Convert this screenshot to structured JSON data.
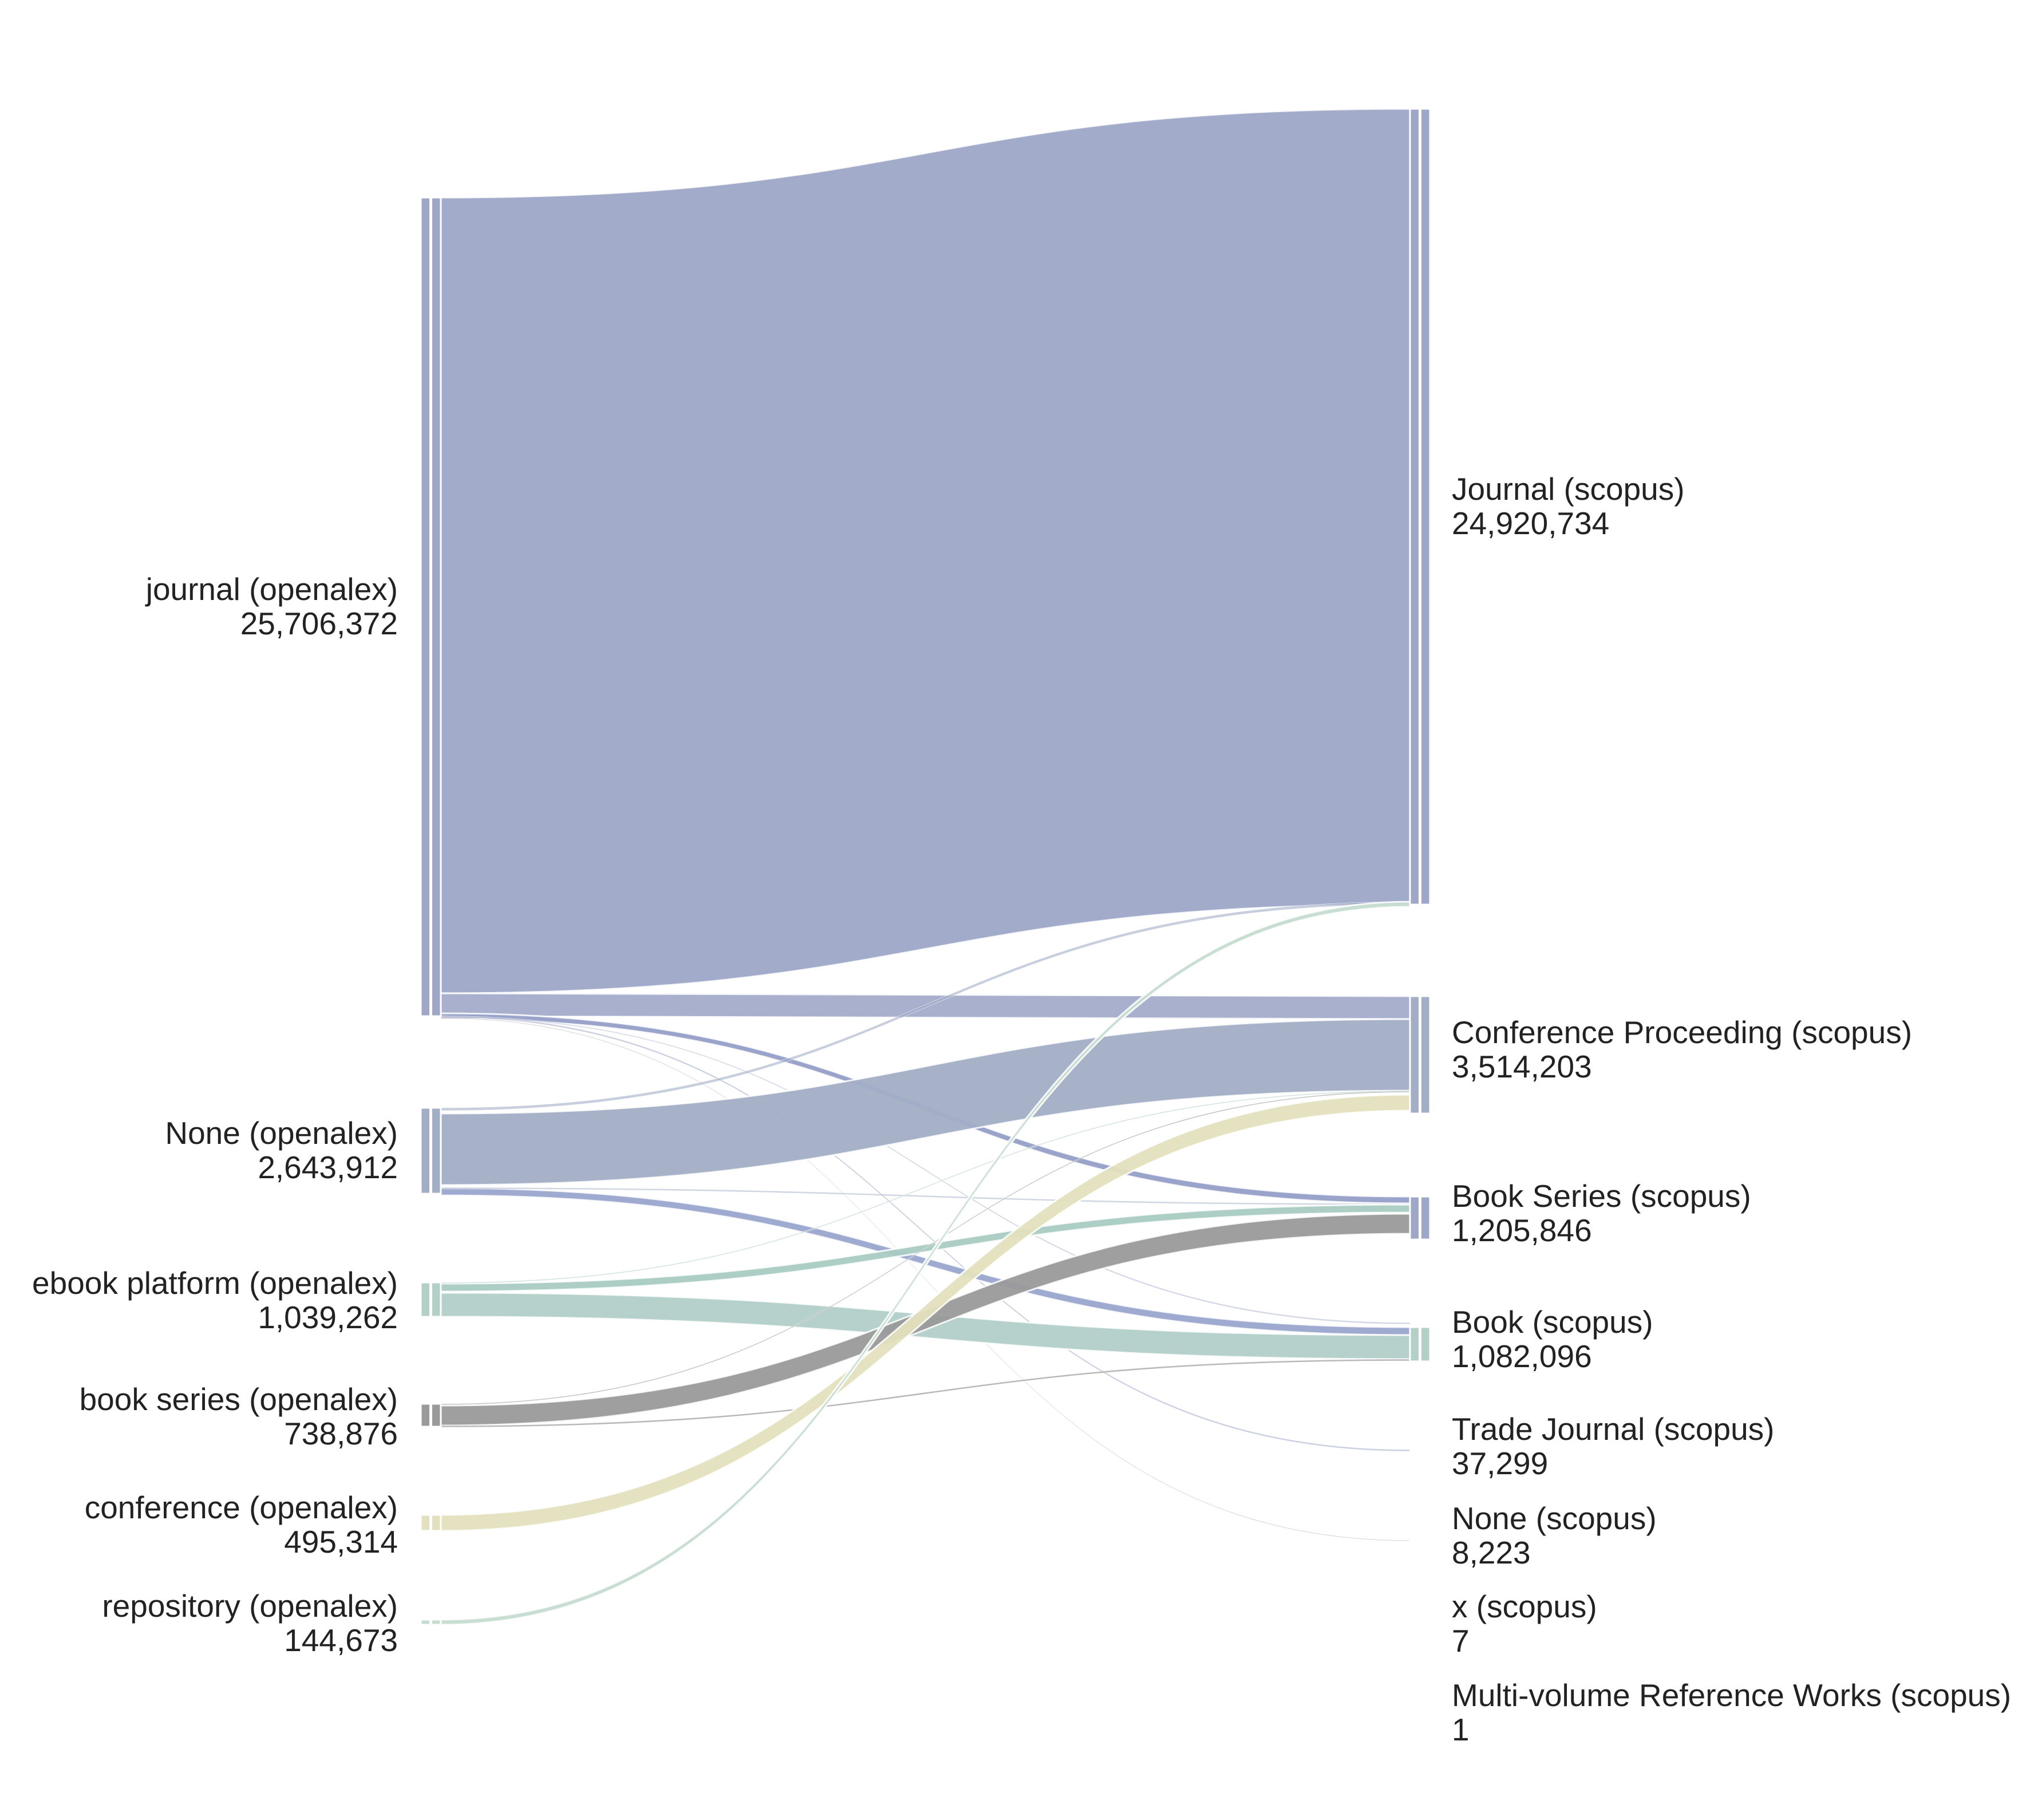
{
  "chart_data": {
    "type": "sankey",
    "left_nodes": [
      {
        "id": "journal",
        "label": "journal (openalex)",
        "value": "25,706,372",
        "color": "#9ea7c8"
      },
      {
        "id": "none_oa",
        "label": "None (openalex)",
        "value": "2,643,912",
        "color": "#a2aec6"
      },
      {
        "id": "ebook",
        "label": "ebook platform (openalex)",
        "value": "1,039,262",
        "color": "#b2cfc8"
      },
      {
        "id": "bookseries_oa",
        "label": "book series (openalex)",
        "value": "738,876",
        "color": "#9a9a9a"
      },
      {
        "id": "conference",
        "label": "conference (openalex)",
        "value": "495,314",
        "color": "#e3e0bd"
      },
      {
        "id": "repository",
        "label": "repository (openalex)",
        "value": "144,673",
        "color": "#c6dcd0"
      }
    ],
    "right_nodes": [
      {
        "id": "journal_s",
        "label": "Journal (scopus)",
        "value": "24,920,734",
        "color": "#9ea7c8"
      },
      {
        "id": "conf_s",
        "label": "Conference Proceeding (scopus)",
        "value": "3,514,203",
        "color": "#a2aec6"
      },
      {
        "id": "bookseries_s",
        "label": "Book Series (scopus)",
        "value": "1,205,846",
        "color": "#9ea7c8"
      },
      {
        "id": "book_s",
        "label": "Book (scopus)",
        "value": "1,082,096",
        "color": "#b2cfc8"
      },
      {
        "id": "trade_s",
        "label": "Trade Journal (scopus)",
        "value": "37,299",
        "color": "#cccccc"
      },
      {
        "id": "none_s",
        "label": "None (scopus)",
        "value": "8,223",
        "color": "#cccccc"
      },
      {
        "id": "x_s",
        "label": "x (scopus)",
        "value": "7",
        "color": "#cccccc"
      },
      {
        "id": "mvrw_s",
        "label": "Multi-volume Reference Works (scopus)",
        "value": "1",
        "color": "#cccccc"
      }
    ],
    "flows": [
      {
        "from": "journal",
        "to": "journal_s",
        "color": "#9ea7c8"
      },
      {
        "from": "journal",
        "to": "conf_s",
        "color": "#9ea7c8"
      },
      {
        "from": "journal",
        "to": "bookseries_s",
        "color": "#8f99c4"
      },
      {
        "from": "journal",
        "to": "trade_s",
        "color": "#9ea7c8"
      },
      {
        "from": "journal",
        "to": "none_s",
        "color": "#bbbbbb"
      },
      {
        "from": "journal",
        "to": "book_s",
        "color": "#9ea7c8"
      },
      {
        "from": "none_oa",
        "to": "conf_s",
        "color": "#a2aec6"
      },
      {
        "from": "none_oa",
        "to": "journal_s",
        "color": "#a2aec6"
      },
      {
        "from": "none_oa",
        "to": "book_s",
        "color": "#95a1cc"
      },
      {
        "from": "none_oa",
        "to": "bookseries_s",
        "color": "#a2aec6"
      },
      {
        "from": "ebook",
        "to": "book_s",
        "color": "#b2cfc8"
      },
      {
        "from": "ebook",
        "to": "bookseries_s",
        "color": "#a9cbc2"
      },
      {
        "from": "ebook",
        "to": "conf_s",
        "color": "#b2cfc8"
      },
      {
        "from": "bookseries_oa",
        "to": "bookseries_s",
        "color": "#9a9a9a"
      },
      {
        "from": "bookseries_oa",
        "to": "book_s",
        "color": "#9a9a9a"
      },
      {
        "from": "bookseries_oa",
        "to": "conf_s",
        "color": "#9a9a9a"
      },
      {
        "from": "conference",
        "to": "conf_s",
        "color": "#e3e0bd"
      },
      {
        "from": "repository",
        "to": "journal_s",
        "color": "#c6dcd0"
      }
    ]
  }
}
